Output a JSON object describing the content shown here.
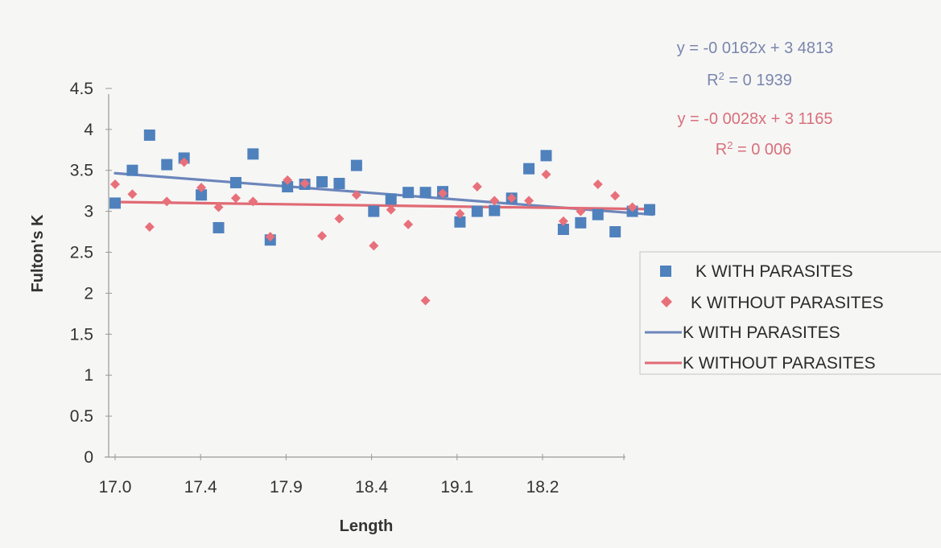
{
  "chart_data": {
    "type": "scatter",
    "title": "",
    "xlabel": "Length",
    "ylabel": "Fulton's K",
    "ylim": [
      0,
      4.5
    ],
    "yticks": [
      "0",
      "0.5",
      "1",
      "1.5",
      "2",
      "2.5",
      "3",
      "3.5",
      "4",
      "4.5"
    ],
    "xticks": [
      "17.0",
      "17.4",
      "17.9",
      "18.4",
      "19.1",
      "18.2"
    ],
    "grid": false,
    "legend_position": "right",
    "series": [
      {
        "name": "K WITH PARASITES",
        "kind": "scatter",
        "marker": "square",
        "color": "#4f81bd",
        "x": [
          1,
          2,
          3,
          4,
          5,
          6,
          7,
          8,
          9,
          10,
          11,
          12,
          13,
          14,
          15,
          16,
          17,
          18,
          19,
          20,
          21,
          22,
          23,
          24,
          25,
          26,
          27,
          28,
          29,
          30,
          31,
          32
        ],
        "values": [
          3.1,
          3.5,
          3.93,
          3.57,
          3.65,
          3.2,
          2.8,
          3.35,
          3.7,
          2.65,
          3.3,
          3.33,
          3.36,
          3.34,
          3.56,
          3.0,
          3.15,
          3.23,
          3.23,
          3.24,
          2.87,
          3.0,
          3.01,
          3.16,
          3.52,
          3.68,
          2.78,
          2.86,
          2.96,
          2.75,
          3.0,
          3.02
        ]
      },
      {
        "name": "K WITHOUT PARASITES",
        "kind": "scatter",
        "marker": "diamond",
        "color": "#e8707a",
        "x": [
          1,
          2,
          3,
          4,
          5,
          6,
          7,
          8,
          9,
          10,
          11,
          12,
          13,
          14,
          15,
          16,
          17,
          18,
          19,
          20,
          21,
          22,
          23,
          24,
          25,
          26,
          27,
          28,
          29,
          30,
          31
        ],
        "values": [
          3.33,
          3.21,
          2.81,
          3.12,
          3.6,
          3.29,
          3.05,
          3.16,
          3.12,
          2.69,
          3.38,
          3.34,
          2.7,
          2.91,
          3.2,
          2.58,
          3.02,
          2.84,
          1.91,
          3.22,
          2.97,
          3.3,
          3.13,
          3.16,
          3.13,
          3.45,
          2.88,
          3.0,
          3.33,
          3.19,
          3.05
        ]
      },
      {
        "name": "K WITH PARASITES",
        "kind": "trendline",
        "color": "#6c86bb",
        "slope": -0.0162,
        "intercept": 3.4813,
        "equation": "y = -0 0162x + 3 4813",
        "r2_label": "R",
        "r2_value": " = 0 1939"
      },
      {
        "name": "K WITHOUT PARASITES",
        "kind": "trendline",
        "color": "#e06a74",
        "slope": -0.0028,
        "intercept": 3.1165,
        "equation": "y = -0 0028x + 3 1165",
        "r2_label": "R",
        "r2_value": " = 0 006"
      }
    ],
    "annotations": {
      "r2_superscript": "2"
    }
  }
}
